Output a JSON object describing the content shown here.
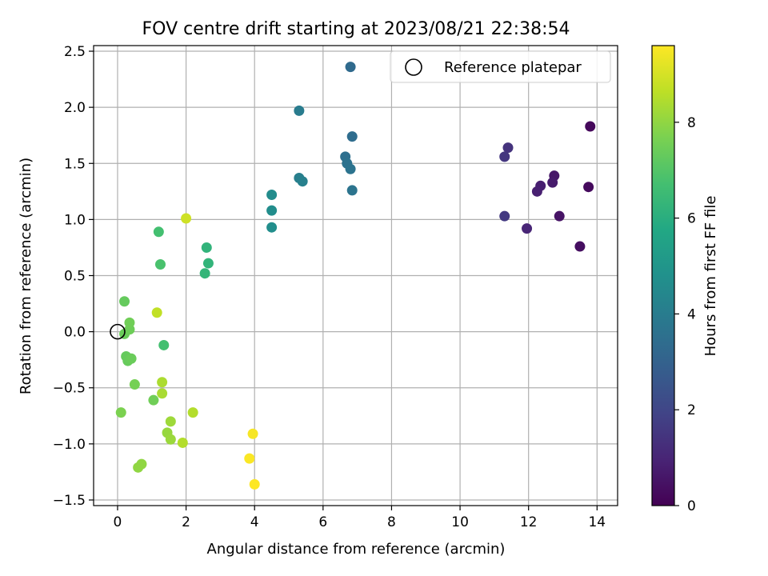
{
  "chart_data": {
    "type": "scatter",
    "title": "FOV centre drift starting at 2023/08/21 22:38:54",
    "xlabel": "Angular distance from reference (arcmin)",
    "ylabel": "Rotation from reference (arcmin)",
    "xlim": [
      -0.7,
      14.6
    ],
    "ylim": [
      -1.55,
      2.55
    ],
    "xticks": [
      0,
      2,
      4,
      6,
      8,
      10,
      12,
      14
    ],
    "xtick_labels": [
      "0",
      "2",
      "4",
      "6",
      "8",
      "10",
      "12",
      "14"
    ],
    "yticks": [
      -1.5,
      -1.0,
      -0.5,
      0.0,
      0.5,
      1.0,
      1.5,
      2.0,
      2.5
    ],
    "ytick_labels": [
      "−1.5",
      "−1.0",
      "−0.5",
      "0.0",
      "0.5",
      "1.0",
      "1.5",
      "2.0",
      "2.5"
    ],
    "grid": true,
    "legend": {
      "placement": "top-right",
      "entries": [
        "Reference platepar"
      ]
    },
    "reference_point": {
      "x": 0,
      "y": 0
    },
    "colorbar": {
      "label": "Hours from first FF file",
      "range": [
        0,
        9.6
      ],
      "ticks": [
        0,
        2,
        4,
        6,
        8
      ],
      "tick_labels": [
        "0",
        "2",
        "4",
        "6",
        "8"
      ],
      "colormap": "viridis"
    },
    "points": [
      {
        "x": 13.8,
        "y": 1.83,
        "c": 0.2
      },
      {
        "x": 13.75,
        "y": 1.29,
        "c": 0.25
      },
      {
        "x": 13.5,
        "y": 0.76,
        "c": 0.35
      },
      {
        "x": 12.9,
        "y": 1.03,
        "c": 0.5
      },
      {
        "x": 12.75,
        "y": 1.39,
        "c": 0.6
      },
      {
        "x": 12.7,
        "y": 1.33,
        "c": 0.7
      },
      {
        "x": 12.35,
        "y": 1.3,
        "c": 0.8
      },
      {
        "x": 12.25,
        "y": 1.25,
        "c": 0.85
      },
      {
        "x": 11.95,
        "y": 0.92,
        "c": 1.0
      },
      {
        "x": 11.4,
        "y": 1.64,
        "c": 1.4
      },
      {
        "x": 11.3,
        "y": 1.56,
        "c": 1.5
      },
      {
        "x": 11.3,
        "y": 1.03,
        "c": 1.6
      },
      {
        "x": 6.8,
        "y": 2.36,
        "c": 3.3
      },
      {
        "x": 6.85,
        "y": 1.74,
        "c": 3.4
      },
      {
        "x": 6.65,
        "y": 1.56,
        "c": 3.5
      },
      {
        "x": 6.7,
        "y": 1.5,
        "c": 3.6
      },
      {
        "x": 6.8,
        "y": 1.45,
        "c": 3.65
      },
      {
        "x": 6.85,
        "y": 1.26,
        "c": 3.7
      },
      {
        "x": 5.3,
        "y": 1.97,
        "c": 4.0
      },
      {
        "x": 5.3,
        "y": 1.37,
        "c": 4.1
      },
      {
        "x": 5.4,
        "y": 1.34,
        "c": 4.15
      },
      {
        "x": 4.5,
        "y": 1.22,
        "c": 4.6
      },
      {
        "x": 4.5,
        "y": 1.08,
        "c": 4.65
      },
      {
        "x": 4.5,
        "y": 0.93,
        "c": 4.7
      },
      {
        "x": 2.6,
        "y": 0.75,
        "c": 6.2
      },
      {
        "x": 2.65,
        "y": 0.61,
        "c": 6.25
      },
      {
        "x": 2.55,
        "y": 0.52,
        "c": 6.3
      },
      {
        "x": 1.2,
        "y": 0.89,
        "c": 6.7
      },
      {
        "x": 1.25,
        "y": 0.6,
        "c": 6.8
      },
      {
        "x": 1.35,
        "y": -0.12,
        "c": 6.7
      },
      {
        "x": 0.2,
        "y": 0.27,
        "c": 7.3
      },
      {
        "x": 0.2,
        "y": -0.02,
        "c": 7.4
      },
      {
        "x": 0.35,
        "y": 0.02,
        "c": 7.45
      },
      {
        "x": 0.35,
        "y": 0.08,
        "c": 7.5
      },
      {
        "x": 0.25,
        "y": -0.22,
        "c": 7.3
      },
      {
        "x": 0.3,
        "y": -0.26,
        "c": 7.35
      },
      {
        "x": 0.4,
        "y": -0.24,
        "c": 7.4
      },
      {
        "x": 0.5,
        "y": -0.47,
        "c": 7.6
      },
      {
        "x": 0.1,
        "y": -0.72,
        "c": 7.7
      },
      {
        "x": 1.05,
        "y": -0.61,
        "c": 7.5
      },
      {
        "x": 0.6,
        "y": -1.21,
        "c": 8.0
      },
      {
        "x": 0.7,
        "y": -1.18,
        "c": 8.0
      },
      {
        "x": 1.3,
        "y": -0.45,
        "c": 8.4
      },
      {
        "x": 1.3,
        "y": -0.55,
        "c": 8.35
      },
      {
        "x": 1.55,
        "y": -0.8,
        "c": 8.2
      },
      {
        "x": 1.45,
        "y": -0.9,
        "c": 8.1
      },
      {
        "x": 1.55,
        "y": -0.96,
        "c": 8.15
      },
      {
        "x": 1.9,
        "y": -0.99,
        "c": 8.5
      },
      {
        "x": 2.2,
        "y": -0.72,
        "c": 8.5
      },
      {
        "x": 1.15,
        "y": 0.17,
        "c": 8.7
      },
      {
        "x": 2.0,
        "y": 1.01,
        "c": 8.9
      },
      {
        "x": 3.95,
        "y": -0.91,
        "c": 9.5
      },
      {
        "x": 3.85,
        "y": -1.13,
        "c": 9.55
      },
      {
        "x": 4.0,
        "y": -1.36,
        "c": 9.6
      }
    ]
  }
}
